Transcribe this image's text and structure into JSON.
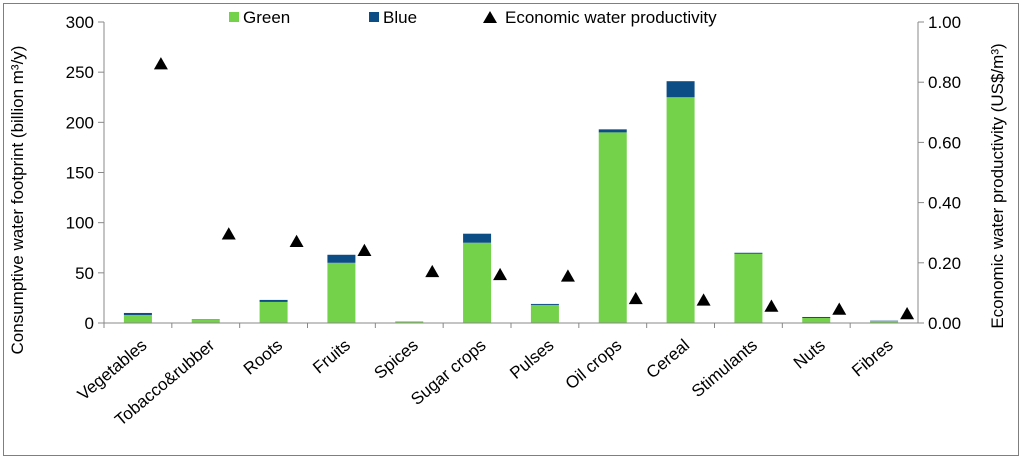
{
  "chart_data": {
    "type": "bar",
    "categories": [
      "Vegetables",
      "Tobacco&rubber",
      "Roots",
      "Fruits",
      "Spices",
      "Sugar crops",
      "Pulses",
      "Oil crops",
      "Cereal",
      "Stimulants",
      "Nuts",
      "Fibres"
    ],
    "series": [
      {
        "name": "Green",
        "axis": "left",
        "kind": "stacked-bar",
        "color": "#74d14a",
        "values": [
          8,
          3,
          21,
          60,
          1,
          80,
          18,
          190,
          225,
          69,
          5,
          2
        ]
      },
      {
        "name": "Blue",
        "axis": "left",
        "kind": "stacked-bar",
        "color": "#0d4d86",
        "values": [
          2,
          0.5,
          2,
          8,
          0.3,
          9,
          1,
          3,
          16,
          1,
          1,
          0.3
        ]
      },
      {
        "name": "Economic water productivity",
        "axis": "right",
        "kind": "scatter",
        "marker": "triangle",
        "color": "#000000",
        "values": [
          0.86,
          0.295,
          0.27,
          0.24,
          0.17,
          0.16,
          0.155,
          0.08,
          0.075,
          0.055,
          0.045,
          0.03
        ]
      }
    ],
    "ylabel_left": "Consumptive water footprint (billion m³/y)",
    "ylabel_right": "Economic water productivity (US$/m³)",
    "ylim_left": [
      0,
      300
    ],
    "yticks_left": [
      "0",
      "50",
      "100",
      "150",
      "200",
      "250",
      "300"
    ],
    "ylim_right": [
      0,
      1
    ],
    "yticks_right": [
      "0.00",
      "0.20",
      "0.40",
      "0.60",
      "0.80",
      "1.00"
    ],
    "legend_position": "top",
    "grid": false
  }
}
